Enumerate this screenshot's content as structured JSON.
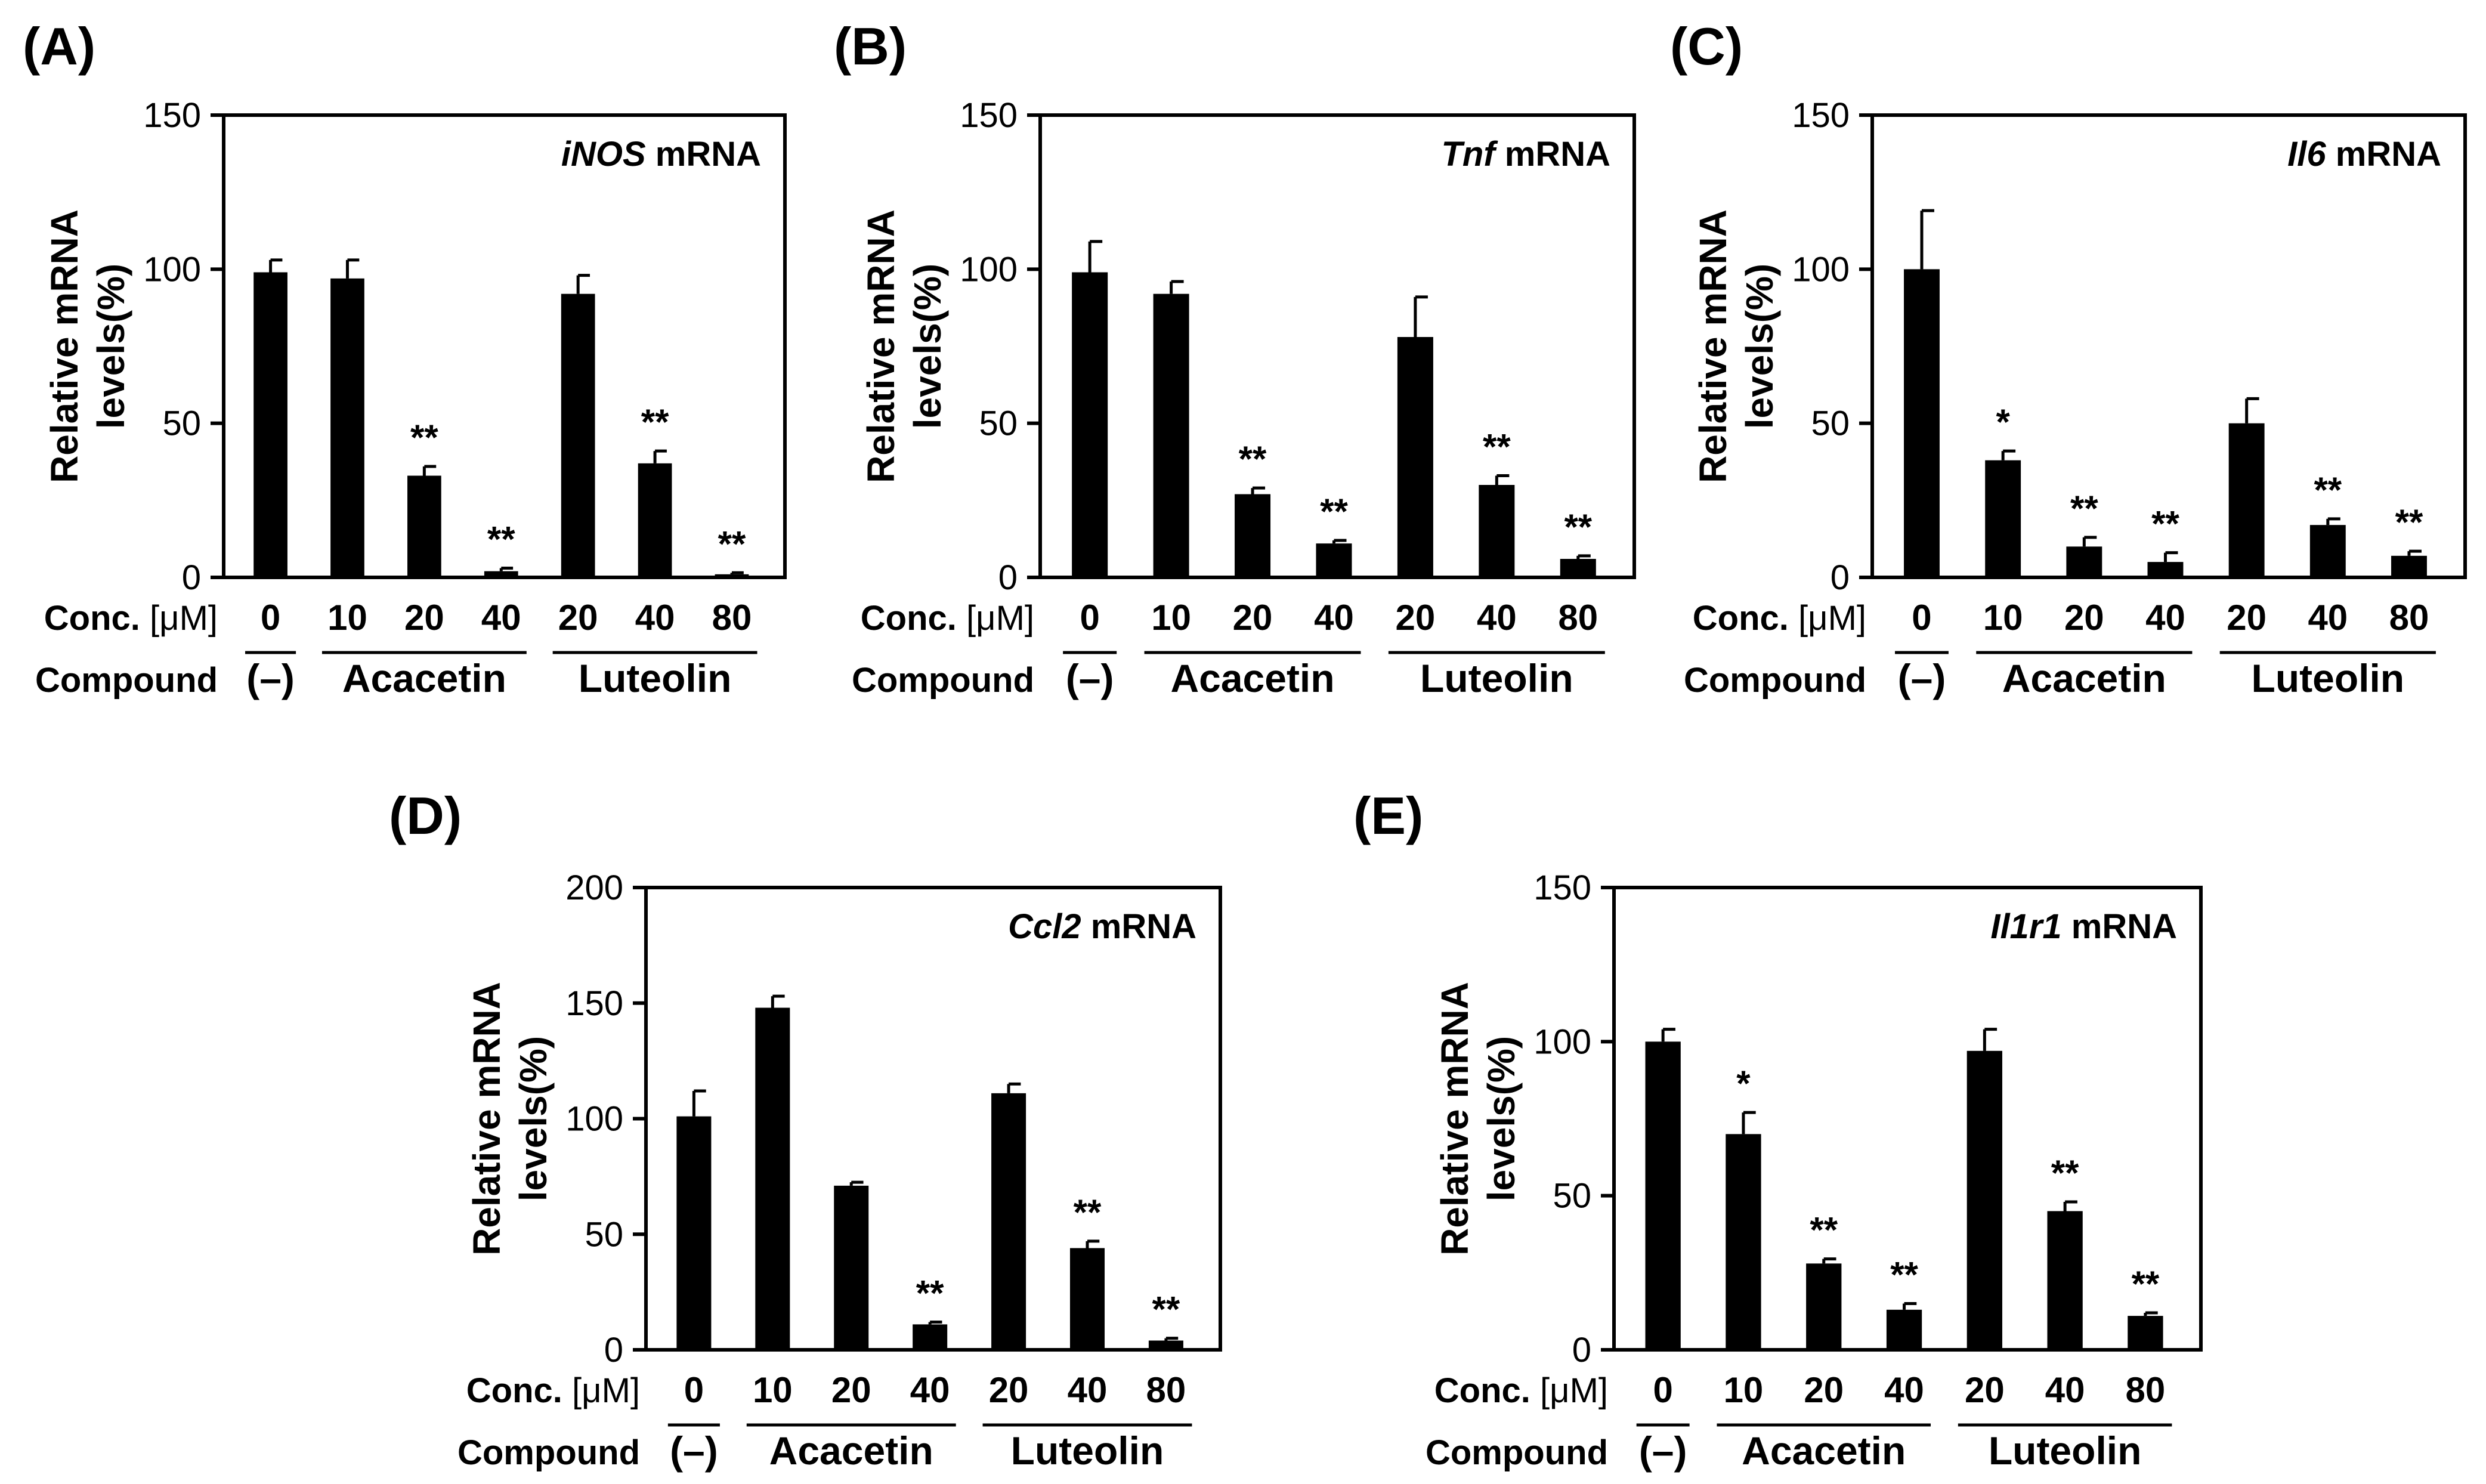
{
  "figure": {
    "categories": [
      "0",
      "10",
      "20",
      "40",
      "20",
      "40",
      "80"
    ],
    "row_conc_label": "Conc.",
    "row_conc_unit": "[μM]",
    "row_compound_label": "Compound",
    "groups": [
      {
        "label": "(–)",
        "from": 0,
        "to": 0
      },
      {
        "label": "Acacetin",
        "from": 1,
        "to": 3
      },
      {
        "label": "Luteolin",
        "from": 4,
        "to": 6
      }
    ],
    "colors": {
      "bar": "#000000",
      "axis": "#000000",
      "background": "#ffffff"
    }
  },
  "chart_data": [
    {
      "type": "bar",
      "panel": "(A)",
      "gene": "iNOS",
      "title_suffix": " mRNA",
      "ylabel_lines": [
        "Relative mRNA",
        "levels(%)"
      ],
      "ylim": [
        0,
        150
      ],
      "yticks": [
        0,
        50,
        100,
        150
      ],
      "categories": [
        "0",
        "10",
        "20",
        "40",
        "20",
        "40",
        "80"
      ],
      "values": [
        99,
        97,
        33,
        2,
        92,
        37,
        1
      ],
      "errors": [
        4,
        6,
        3,
        1,
        6,
        4,
        0.5
      ],
      "significance": [
        "",
        "",
        "**",
        "**",
        "",
        "**",
        "**"
      ]
    },
    {
      "type": "bar",
      "panel": "(B)",
      "gene": "Tnf",
      "title_suffix": " mRNA",
      "ylabel_lines": [
        "Relative mRNA",
        "levels(%)"
      ],
      "ylim": [
        0,
        150
      ],
      "yticks": [
        0,
        50,
        100,
        150
      ],
      "categories": [
        "0",
        "10",
        "20",
        "40",
        "20",
        "40",
        "80"
      ],
      "values": [
        99,
        92,
        27,
        11,
        78,
        30,
        6
      ],
      "errors": [
        10,
        4,
        2,
        1,
        13,
        3,
        1
      ],
      "significance": [
        "",
        "",
        "**",
        "**",
        "",
        "**",
        "**"
      ]
    },
    {
      "type": "bar",
      "panel": "(C)",
      "gene": "Il6",
      "title_suffix": " mRNA",
      "ylabel_lines": [
        "Relative mRNA",
        "levels(%)"
      ],
      "ylim": [
        0,
        150
      ],
      "yticks": [
        0,
        50,
        100,
        150
      ],
      "categories": [
        "0",
        "10",
        "20",
        "40",
        "20",
        "40",
        "80"
      ],
      "values": [
        100,
        38,
        10,
        5,
        50,
        17,
        7
      ],
      "errors": [
        19,
        3,
        3,
        3,
        8,
        2,
        1.5
      ],
      "significance": [
        "",
        "*",
        "**",
        "**",
        "",
        "**",
        "**"
      ]
    },
    {
      "type": "bar",
      "panel": "(D)",
      "gene": "Ccl2",
      "title_suffix": " mRNA",
      "ylabel_lines": [
        "Relative mRNA",
        "levels(%)"
      ],
      "ylim": [
        0,
        200
      ],
      "yticks": [
        0,
        50,
        100,
        150,
        200
      ],
      "categories": [
        "0",
        "10",
        "20",
        "40",
        "20",
        "40",
        "80"
      ],
      "values": [
        101,
        148,
        71,
        11,
        111,
        44,
        4
      ],
      "errors": [
        11,
        5,
        1.5,
        1,
        4,
        3,
        1
      ],
      "significance": [
        "",
        "",
        "",
        "**",
        "",
        "**",
        "**"
      ]
    },
    {
      "type": "bar",
      "panel": "(E)",
      "gene": "Il1r1",
      "title_suffix": " mRNA",
      "ylabel_lines": [
        "Relative mRNA",
        "levels(%)"
      ],
      "ylim": [
        0,
        150
      ],
      "yticks": [
        0,
        50,
        100,
        150
      ],
      "categories": [
        "0",
        "10",
        "20",
        "40",
        "20",
        "40",
        "80"
      ],
      "values": [
        100,
        70,
        28,
        13,
        97,
        45,
        11
      ],
      "errors": [
        4,
        7,
        1.5,
        2,
        7,
        3,
        1
      ],
      "significance": [
        "",
        "*",
        "**",
        "**",
        "",
        "**",
        "**"
      ]
    }
  ]
}
